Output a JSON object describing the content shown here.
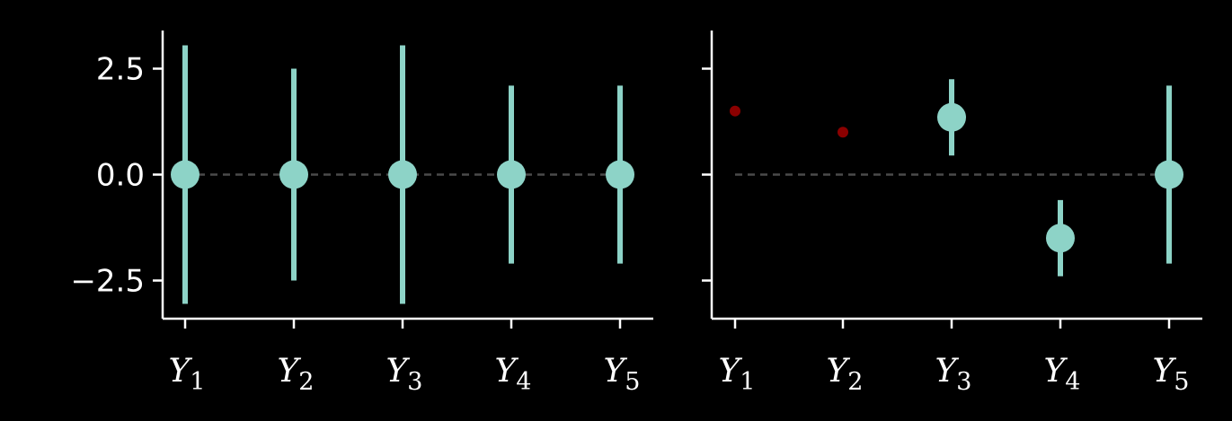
{
  "colors": {
    "background": "#000000",
    "axis": "#ffffff",
    "text": "#ffffff",
    "marker": "#8dd3c7",
    "reference_line": "#4a4a4a",
    "small_marker": "#8b0000"
  },
  "chart_data": [
    {
      "type": "scatter",
      "title": "",
      "xlabel": "",
      "ylabel": "",
      "categories": [
        {
          "base": "Y",
          "sub": "1"
        },
        {
          "base": "Y",
          "sub": "2"
        },
        {
          "base": "Y",
          "sub": "3"
        },
        {
          "base": "Y",
          "sub": "4"
        },
        {
          "base": "Y",
          "sub": "5"
        }
      ],
      "ylim": [
        -3.4,
        3.4
      ],
      "yticks": [
        -2.5,
        0.0,
        2.5
      ],
      "ytick_labels": [
        "−2.5",
        "0.0",
        "2.5"
      ],
      "reference_line_y": 0,
      "points": [
        {
          "y": 0.0,
          "err_low": -3.05,
          "err_high": 3.05
        },
        {
          "y": 0.0,
          "err_low": -2.5,
          "err_high": 2.5
        },
        {
          "y": 0.0,
          "err_low": -3.05,
          "err_high": 3.05
        },
        {
          "y": 0.0,
          "err_low": -2.1,
          "err_high": 2.1
        },
        {
          "y": 0.0,
          "err_low": -2.1,
          "err_high": 2.1
        }
      ],
      "small_points": []
    },
    {
      "type": "scatter",
      "title": "",
      "xlabel": "",
      "ylabel": "",
      "categories": [
        {
          "base": "Y",
          "sub": "1"
        },
        {
          "base": "Y",
          "sub": "2"
        },
        {
          "base": "Y",
          "sub": "3"
        },
        {
          "base": "Y",
          "sub": "4"
        },
        {
          "base": "Y",
          "sub": "5"
        }
      ],
      "ylim": [
        -3.4,
        3.4
      ],
      "yticks": [
        -2.5,
        0.0,
        2.5
      ],
      "ytick_labels": [
        "",
        "",
        ""
      ],
      "reference_line_y": 0,
      "points": [
        {
          "index": 2,
          "y": 1.35,
          "err_low": 0.45,
          "err_high": 2.25
        },
        {
          "index": 3,
          "y": -1.5,
          "err_low": -2.4,
          "err_high": -0.6
        },
        {
          "index": 4,
          "y": 0.0,
          "err_low": -2.1,
          "err_high": 2.1
        }
      ],
      "small_points": [
        {
          "index": 0,
          "y": 1.5
        },
        {
          "index": 1,
          "y": 1.0
        }
      ]
    }
  ]
}
